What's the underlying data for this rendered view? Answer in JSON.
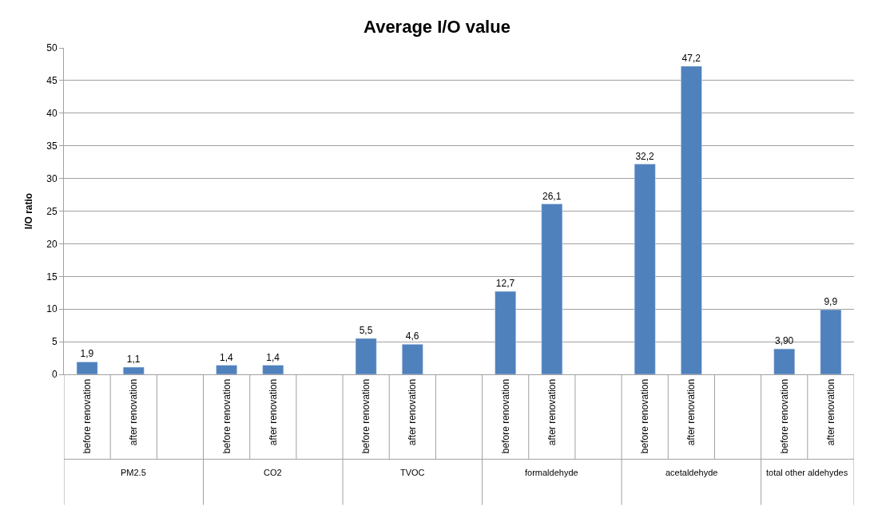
{
  "chart_data": {
    "type": "bar",
    "title": "Average I/O value",
    "ylabel": "I/O ratio",
    "categories": [
      "before renovation",
      "after renovation",
      null,
      "before renovation",
      "after renovation",
      null,
      "before renovation",
      "after renovation",
      null,
      "before renovation",
      "after renovation",
      null,
      "before renovation",
      "after renovation",
      null,
      "before renovation",
      "after renovation"
    ],
    "values": [
      1.9,
      1.1,
      null,
      1.4,
      1.4,
      null,
      5.5,
      4.6,
      null,
      12.7,
      26.1,
      null,
      32.2,
      47.2,
      null,
      3.9,
      9.9
    ],
    "value_labels": [
      "1,9",
      "1,1",
      null,
      "1,4",
      "1,4",
      null,
      "5,5",
      "4,6",
      null,
      "12,7",
      "26,1",
      null,
      "32,2",
      "47,2",
      null,
      "3,90",
      "9,9"
    ],
    "annotations": [
      "PM2.5",
      "CO2",
      "TVOC",
      "formaldehyde",
      "acetaldehyde",
      "total other aldehydes"
    ],
    "color": "#4f81bd",
    "ylim": [
      0,
      50
    ],
    "yticks": [
      0,
      5,
      10,
      15,
      20,
      25,
      30,
      35,
      40,
      45,
      50
    ],
    "grid": "y"
  }
}
